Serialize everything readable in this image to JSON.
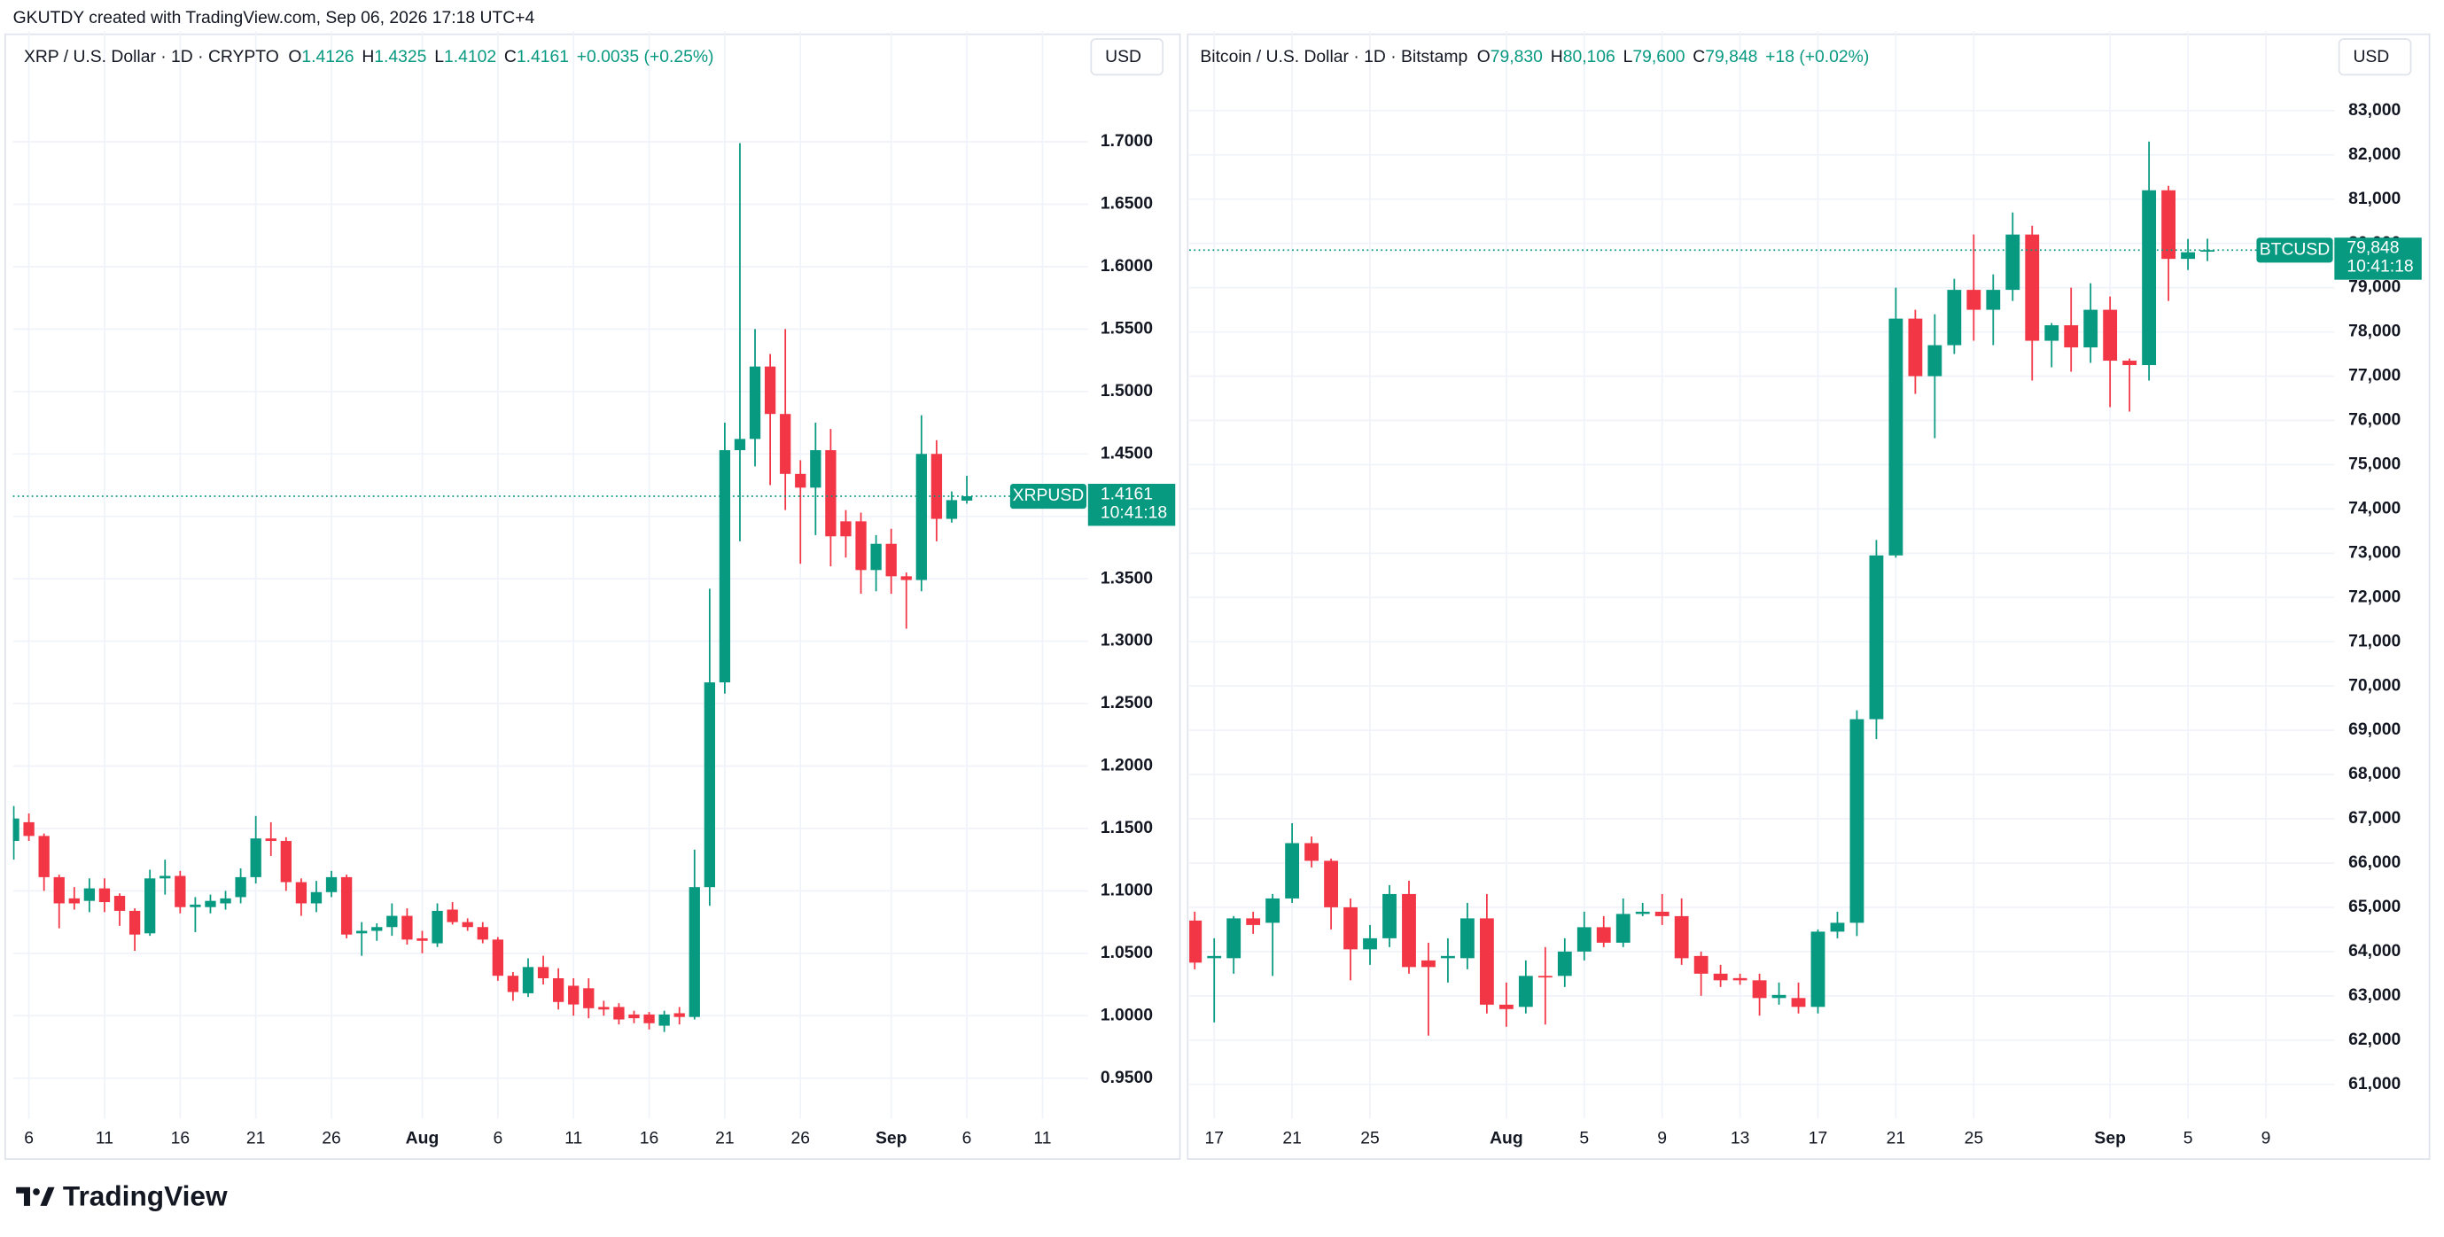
{
  "header": "GKUTDY created with TradingView.com, Sep 06, 2026 17:18 UTC+4",
  "brand": "TradingView",
  "chart_data": [
    {
      "type": "candlestick",
      "title": "XRP / U.S. Dollar · 1D · CRYPTO",
      "ohlc_header": [
        {
          "label": "O",
          "value": "1.4126"
        },
        {
          "label": "H",
          "value": "1.4325"
        },
        {
          "label": "L",
          "value": "1.4102"
        },
        {
          "label": "C",
          "value": "1.4161"
        }
      ],
      "change": "+0.0035 (+0.25%)",
      "currency": "USD",
      "up_color": "#089981",
      "down_color": "#f23645",
      "grid": true,
      "ylim": [
        0.9176,
        1.7512
      ],
      "yticks": [
        {
          "value": 0.95,
          "label": "0.9500"
        },
        {
          "value": 1.0,
          "label": "1.0000"
        },
        {
          "value": 1.05,
          "label": "1.0500"
        },
        {
          "value": 1.1,
          "label": "1.1000"
        },
        {
          "value": 1.15,
          "label": "1.1500"
        },
        {
          "value": 1.2,
          "label": "1.2000"
        },
        {
          "value": 1.25,
          "label": "1.2500"
        },
        {
          "value": 1.3,
          "label": "1.3000"
        },
        {
          "value": 1.35,
          "label": "1.3500"
        },
        {
          "value": 1.4,
          "label": "1.4000"
        },
        {
          "value": 1.45,
          "label": "1.4500"
        },
        {
          "value": 1.5,
          "label": "1.5000"
        },
        {
          "value": 1.55,
          "label": "1.5500"
        },
        {
          "value": 1.6,
          "label": "1.6000"
        },
        {
          "value": 1.65,
          "label": "1.6500"
        },
        {
          "value": 1.7,
          "label": "1.7000"
        }
      ],
      "categories": [
        null,
        "6",
        null,
        null,
        null,
        null,
        "11",
        null,
        null,
        null,
        null,
        "16",
        null,
        null,
        null,
        null,
        "21",
        null,
        null,
        null,
        null,
        "26",
        null,
        null,
        null,
        null,
        null,
        "Aug",
        null,
        null,
        null,
        null,
        "6",
        null,
        null,
        null,
        null,
        "11",
        null,
        null,
        null,
        null,
        "16",
        null,
        null,
        null,
        null,
        "21",
        null,
        null,
        null,
        null,
        "26",
        null,
        null,
        null,
        null,
        null,
        "Sep",
        null,
        null,
        null,
        null,
        "6",
        null,
        null,
        null,
        null,
        "11"
      ],
      "open": [
        1.14,
        1.155,
        1.144,
        1.111,
        1.094,
        1.092,
        1.102,
        1.096,
        1.084,
        1.066,
        1.11,
        1.112,
        1.087,
        1.087,
        1.09,
        1.095,
        1.111,
        1.142,
        1.14,
        1.107,
        1.09,
        1.099,
        1.111,
        1.066,
        1.068,
        1.071,
        1.08,
        1.062,
        1.058,
        1.085,
        1.075,
        1.071,
        1.061,
        1.032,
        1.018,
        1.039,
        1.03,
        1.024,
        1.022,
        1.007,
        1.007,
        1.001,
        1.001,
        0.992,
        1.002,
        0.999,
        1.103,
        1.267,
        1.453,
        1.462,
        1.52,
        1.482,
        1.434,
        1.423,
        1.453,
        1.396,
        1.396,
        1.357,
        1.378,
        1.352,
        1.349,
        1.45,
        1.398,
        1.4126,
        null,
        null,
        null,
        null,
        null
      ],
      "high": [
        1.168,
        1.162,
        1.146,
        1.113,
        1.103,
        1.11,
        1.11,
        1.098,
        1.086,
        1.117,
        1.125,
        1.116,
        1.095,
        1.097,
        1.1,
        1.118,
        1.16,
        1.155,
        1.143,
        1.11,
        1.108,
        1.116,
        1.113,
        1.075,
        1.074,
        1.09,
        1.086,
        1.068,
        1.09,
        1.091,
        1.078,
        1.075,
        1.063,
        1.035,
        1.046,
        1.048,
        1.038,
        1.03,
        1.03,
        1.012,
        1.01,
        1.004,
        1.003,
        1.004,
        1.007,
        1.133,
        1.342,
        1.475,
        1.699,
        1.55,
        1.53,
        1.55,
        1.445,
        1.475,
        1.47,
        1.405,
        1.403,
        1.385,
        1.39,
        1.355,
        1.481,
        1.461,
        1.42,
        1.4325,
        null,
        null,
        null,
        null,
        null
      ],
      "low": [
        1.125,
        1.14,
        1.1,
        1.07,
        1.085,
        1.083,
        1.083,
        1.072,
        1.052,
        1.064,
        1.097,
        1.082,
        1.067,
        1.082,
        1.085,
        1.09,
        1.106,
        1.128,
        1.1,
        1.08,
        1.083,
        1.095,
        1.062,
        1.048,
        1.06,
        1.064,
        1.057,
        1.05,
        1.055,
        1.073,
        1.068,
        1.058,
        1.028,
        1.012,
        1.015,
        1.025,
        1.005,
        1.0,
        0.998,
        1.0,
        0.993,
        0.994,
        0.989,
        0.987,
        0.993,
        0.997,
        1.088,
        1.258,
        1.38,
        1.44,
        1.425,
        1.405,
        1.362,
        1.385,
        1.36,
        1.367,
        1.338,
        1.34,
        1.338,
        1.31,
        1.34,
        1.38,
        1.395,
        1.4102,
        null,
        null,
        null,
        null,
        null
      ],
      "close": [
        1.158,
        1.144,
        1.111,
        1.09,
        1.09,
        1.102,
        1.091,
        1.084,
        1.065,
        1.11,
        1.112,
        1.087,
        1.089,
        1.092,
        1.094,
        1.111,
        1.142,
        1.14,
        1.107,
        1.09,
        1.099,
        1.111,
        1.065,
        1.068,
        1.071,
        1.08,
        1.061,
        1.06,
        1.084,
        1.075,
        1.071,
        1.061,
        1.032,
        1.019,
        1.039,
        1.03,
        1.011,
        1.009,
        1.006,
        1.005,
        0.997,
        0.998,
        0.994,
        1.001,
        0.999,
        1.103,
        1.267,
        1.453,
        1.462,
        1.52,
        1.482,
        1.434,
        1.423,
        1.453,
        1.384,
        1.384,
        1.357,
        1.378,
        1.352,
        1.349,
        1.45,
        1.398,
        1.413,
        1.4161,
        null,
        null,
        null,
        null,
        null
      ],
      "price_tag": {
        "symbol": "XRPUSD",
        "value": 1.4161,
        "countdown": "10:41:18"
      }
    },
    {
      "type": "candlestick",
      "title": "Bitcoin / U.S. Dollar · 1D · Bitstamp",
      "ohlc_header": [
        {
          "label": "O",
          "value": "79,830"
        },
        {
          "label": "H",
          "value": "80,106"
        },
        {
          "label": "L",
          "value": "79,600"
        },
        {
          "label": "C",
          "value": "79,848"
        }
      ],
      "change": "+18 (+0.02%)",
      "currency": "USD",
      "up_color": "#089981",
      "down_color": "#f23645",
      "grid": true,
      "ylim": [
        60226,
        83739
      ],
      "yticks": [
        {
          "value": 61000,
          "label": "61,000"
        },
        {
          "value": 62000,
          "label": "62,000"
        },
        {
          "value": 63000,
          "label": "63,000"
        },
        {
          "value": 64000,
          "label": "64,000"
        },
        {
          "value": 65000,
          "label": "65,000"
        },
        {
          "value": 66000,
          "label": "66,000"
        },
        {
          "value": 67000,
          "label": "67,000"
        },
        {
          "value": 68000,
          "label": "68,000"
        },
        {
          "value": 69000,
          "label": "69,000"
        },
        {
          "value": 70000,
          "label": "70,000"
        },
        {
          "value": 71000,
          "label": "71,000"
        },
        {
          "value": 72000,
          "label": "72,000"
        },
        {
          "value": 73000,
          "label": "73,000"
        },
        {
          "value": 74000,
          "label": "74,000"
        },
        {
          "value": 75000,
          "label": "75,000"
        },
        {
          "value": 76000,
          "label": "76,000"
        },
        {
          "value": 77000,
          "label": "77,000"
        },
        {
          "value": 78000,
          "label": "78,000"
        },
        {
          "value": 79000,
          "label": "79,000"
        },
        {
          "value": 80000,
          "label": "80,000"
        },
        {
          "value": 81000,
          "label": "81,000"
        },
        {
          "value": 82000,
          "label": "82,000"
        },
        {
          "value": 83000,
          "label": "83,000"
        }
      ],
      "categories": [
        null,
        "17",
        null,
        null,
        null,
        "21",
        null,
        null,
        null,
        "25",
        null,
        null,
        null,
        null,
        null,
        null,
        "Aug",
        null,
        null,
        null,
        "5",
        null,
        null,
        null,
        "9",
        null,
        null,
        null,
        "13",
        null,
        null,
        null,
        "17",
        null,
        null,
        null,
        "21",
        null,
        null,
        null,
        "25",
        null,
        null,
        null,
        null,
        null,
        null,
        "Sep",
        null,
        null,
        null,
        "5",
        null,
        null,
        null,
        "9"
      ],
      "open": [
        64700,
        63850,
        63850,
        64750,
        64650,
        65200,
        66450,
        66050,
        65000,
        64050,
        64300,
        65300,
        63800,
        63850,
        63850,
        64750,
        62800,
        62750,
        63450,
        63450,
        64000,
        64550,
        64200,
        64850,
        64900,
        64800,
        63900,
        63500,
        63400,
        63350,
        62950,
        62950,
        62750,
        64450,
        64650,
        69250,
        72950,
        78300,
        77000,
        77700,
        78950,
        78500,
        78950,
        80200,
        77800,
        78150,
        77650,
        78500,
        77350,
        77250,
        81200,
        79650,
        79830,
        null,
        null,
        null
      ],
      "high": [
        64900,
        64300,
        64800,
        64900,
        65300,
        66900,
        66600,
        66100,
        65200,
        64600,
        65500,
        65600,
        64200,
        64300,
        65100,
        65300,
        63300,
        63800,
        64100,
        64300,
        64900,
        64800,
        65200,
        65100,
        65300,
        65200,
        64000,
        63700,
        63500,
        63500,
        63300,
        63300,
        64500,
        64900,
        69450,
        73300,
        79000,
        78500,
        78400,
        79200,
        80200,
        79300,
        80700,
        80400,
        78200,
        79000,
        79100,
        78800,
        77400,
        82300,
        81300,
        80100,
        80106,
        null,
        null,
        null
      ],
      "low": [
        63600,
        62400,
        63500,
        64400,
        63450,
        65100,
        65900,
        64500,
        63350,
        63700,
        64100,
        63500,
        62100,
        63300,
        63600,
        62600,
        62300,
        62600,
        62350,
        63200,
        63800,
        64100,
        64100,
        64800,
        64600,
        63700,
        63000,
        63200,
        63250,
        62550,
        62800,
        62600,
        62600,
        64300,
        64350,
        68800,
        72900,
        76600,
        75600,
        77500,
        77800,
        77700,
        78700,
        76900,
        77200,
        77100,
        77300,
        76300,
        76200,
        76900,
        78700,
        79400,
        79600,
        null,
        null,
        null
      ],
      "close": [
        63750,
        63900,
        64750,
        64600,
        65200,
        66450,
        66050,
        65000,
        64050,
        64300,
        65300,
        63650,
        63650,
        63900,
        64750,
        62800,
        62700,
        63450,
        63420,
        64000,
        64550,
        64200,
        64850,
        64900,
        64800,
        63850,
        63500,
        63350,
        63350,
        62950,
        63020,
        62750,
        64450,
        64650,
        69250,
        72950,
        78300,
        77000,
        77700,
        78950,
        78500,
        78950,
        80200,
        77800,
        78150,
        77650,
        78500,
        77350,
        77250,
        81200,
        79650,
        79800,
        79848,
        null,
        null,
        null
      ],
      "price_tag": {
        "symbol": "BTCUSD",
        "value": {
          "value": 79848,
          "label": "79,848"
        },
        "countdown": "10:41:18"
      }
    }
  ]
}
